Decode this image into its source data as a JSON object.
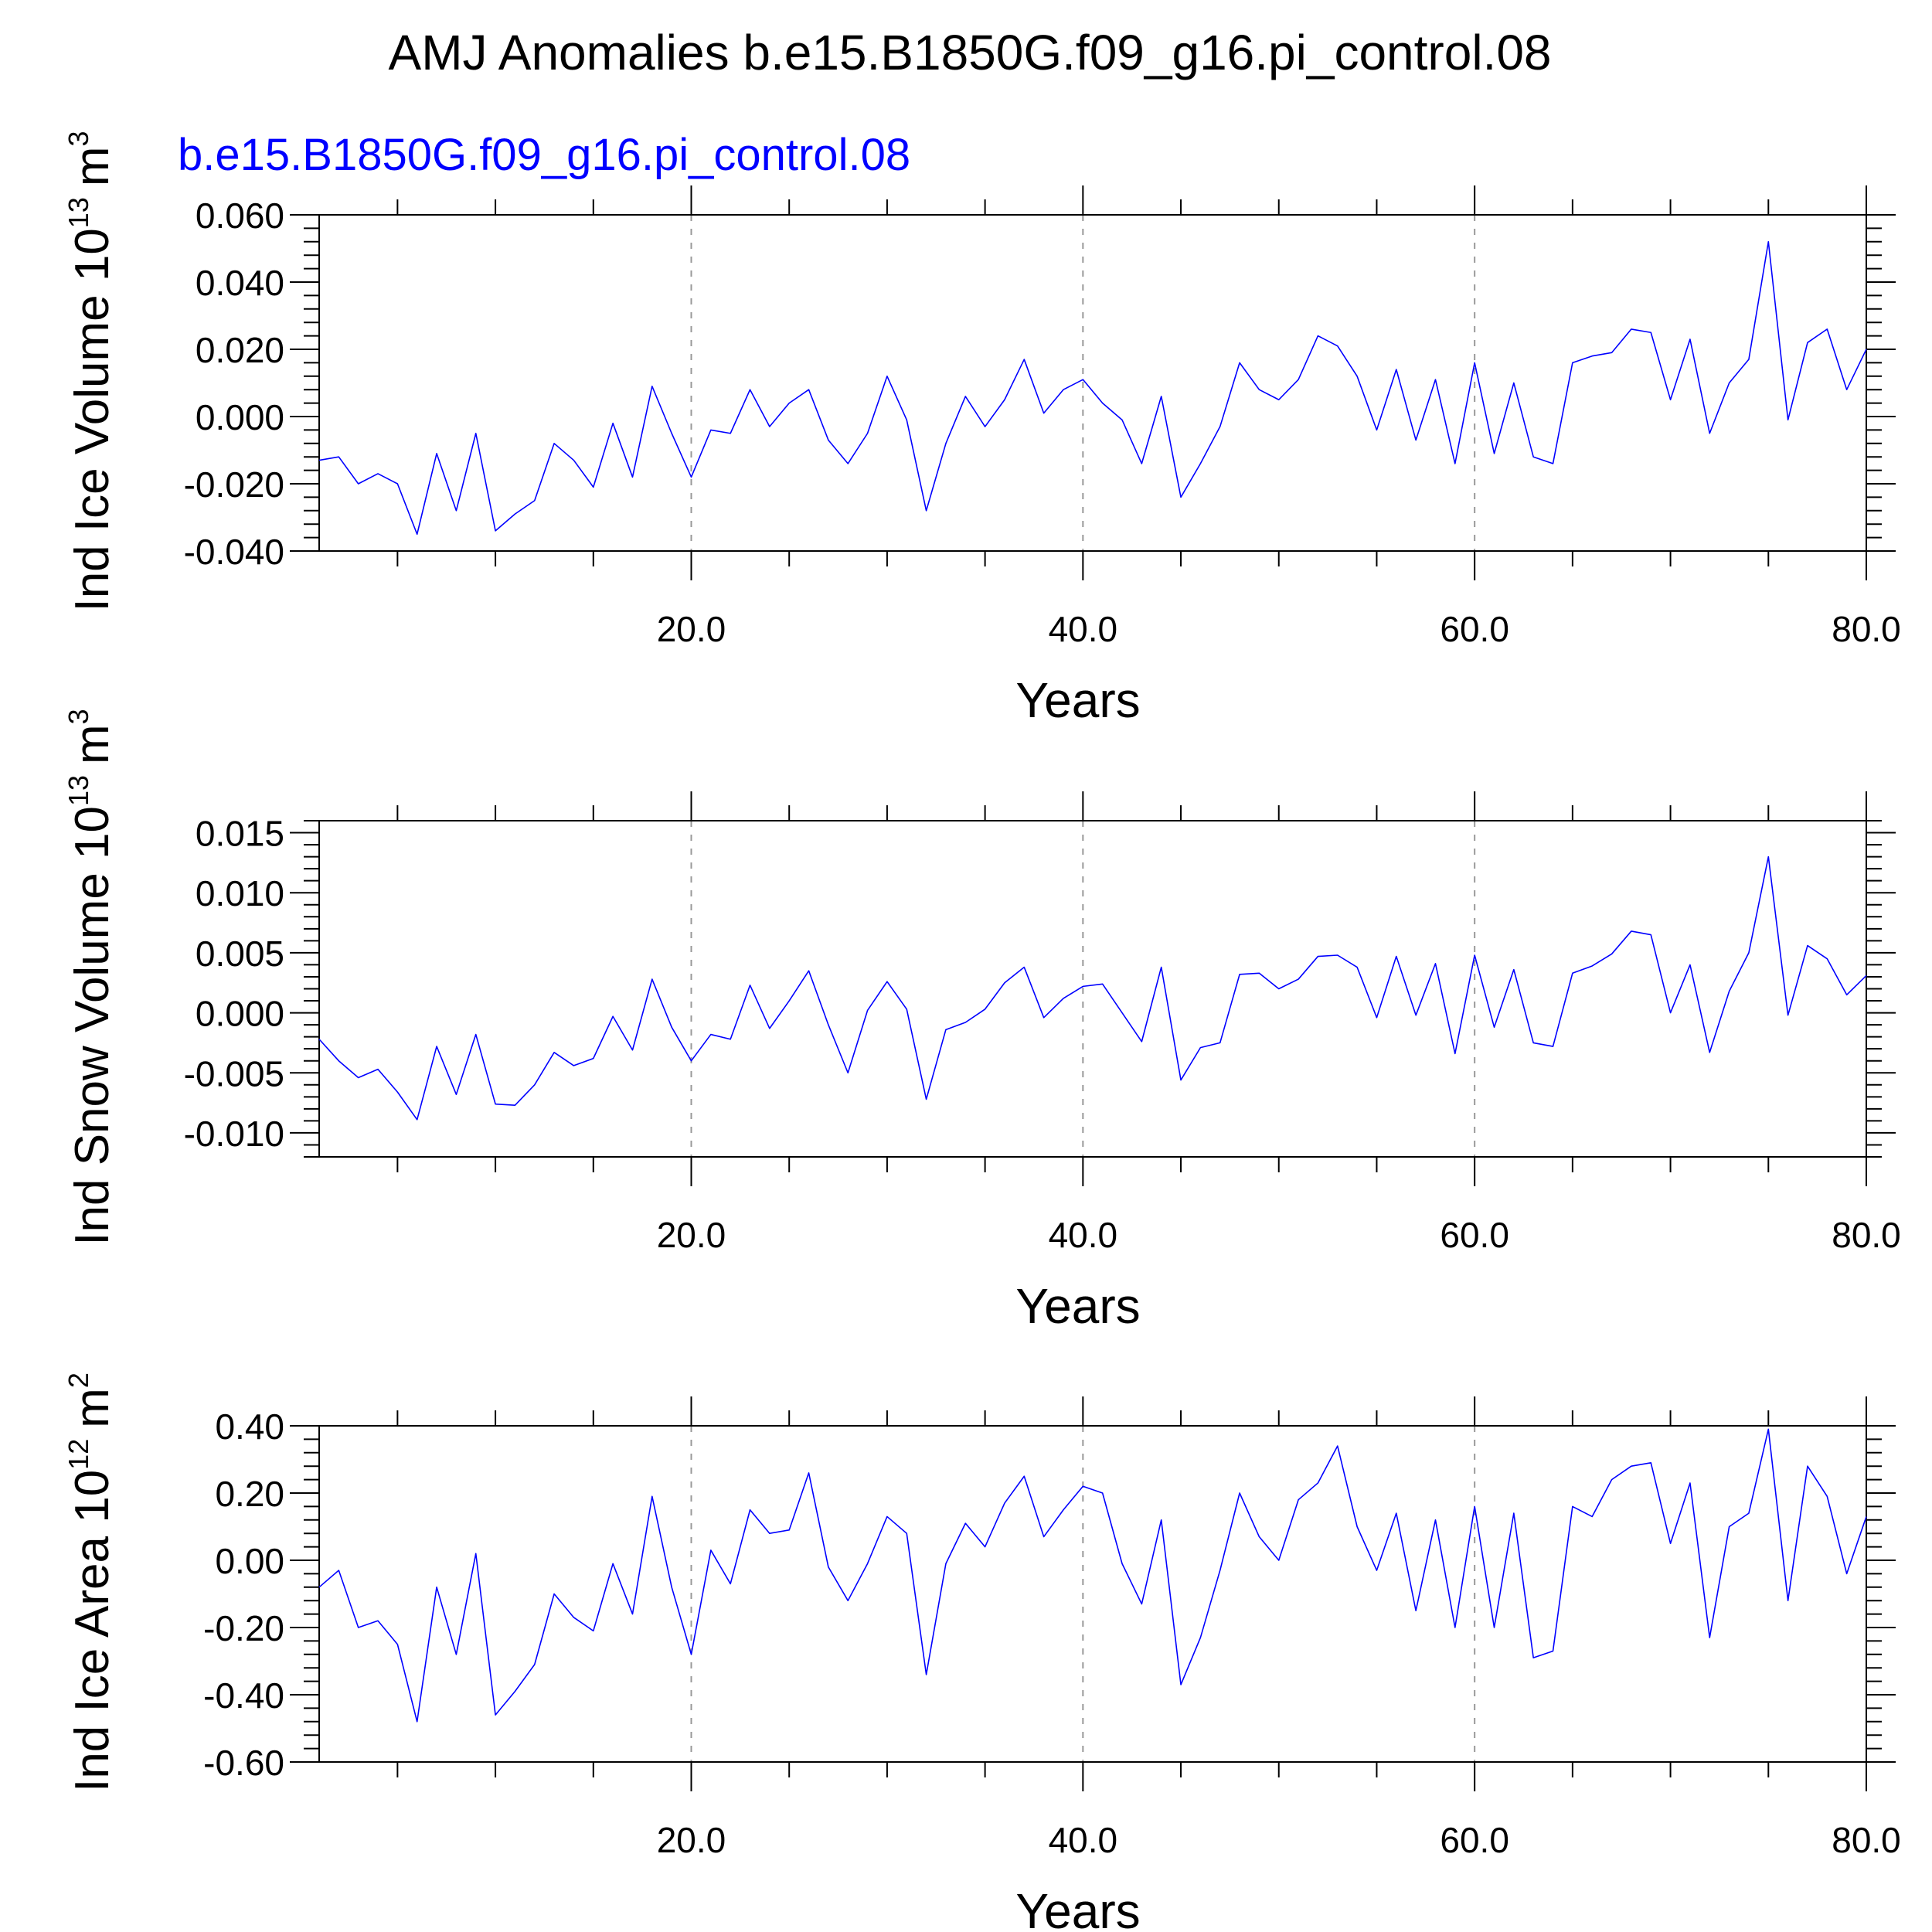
{
  "title": "AMJ Anomalies b.e15.B1850G.f09_g16.pi_control.08",
  "colors": {
    "series": "#0000ff",
    "grid": "#999999",
    "axes": "#000000"
  },
  "chart_data": [
    {
      "type": "line",
      "subtitle": "b.e15.B1850G.f09_g16.pi_control.08",
      "ylabel": {
        "text": "Ind Ice Volume 10",
        "exp": "13",
        "unit": "m",
        "unit_exp": "3"
      },
      "xlabel": "Years",
      "xlim": [
        1,
        80
      ],
      "ylim": [
        -0.04,
        0.06
      ],
      "yticks": [
        -0.04,
        -0.02,
        0.0,
        0.02,
        0.04,
        0.06
      ],
      "yticklabels": [
        "-0.040",
        "-0.020",
        "0.000",
        "0.020",
        "0.040",
        "0.060"
      ],
      "xticks": [
        20,
        40,
        60,
        80
      ],
      "xticklabels": [
        "20.0",
        "40.0",
        "60.0",
        "80.0"
      ],
      "grid_x": [
        20,
        40,
        60
      ],
      "series": [
        {
          "x_start": 1,
          "values": [
            -0.013,
            -0.012,
            -0.02,
            -0.017,
            -0.02,
            -0.035,
            -0.011,
            -0.028,
            -0.005,
            -0.034,
            -0.029,
            -0.025,
            -0.008,
            -0.013,
            -0.021,
            -0.002,
            -0.018,
            0.009,
            -0.005,
            -0.018,
            -0.004,
            -0.005,
            0.008,
            -0.003,
            0.004,
            0.008,
            -0.007,
            -0.014,
            -0.005,
            0.012,
            -0.001,
            -0.028,
            -0.008,
            0.006,
            -0.003,
            0.005,
            0.017,
            0.001,
            0.008,
            0.011,
            0.004,
            -0.001,
            -0.014,
            0.006,
            -0.024,
            -0.014,
            -0.003,
            0.016,
            0.008,
            0.005,
            0.011,
            0.024,
            0.021,
            0.012,
            -0.004,
            0.014,
            -0.007,
            0.011,
            -0.014,
            0.016,
            -0.011,
            0.01,
            -0.012,
            -0.014,
            0.016,
            0.018,
            0.019,
            0.026,
            0.025,
            0.005,
            0.023,
            -0.005,
            0.01,
            0.017,
            0.052,
            -0.001,
            0.022,
            0.026,
            0.008,
            0.02
          ]
        }
      ]
    },
    {
      "type": "line",
      "ylabel": {
        "text": "Ind Snow Volume 10",
        "exp": "13",
        "unit": "m",
        "unit_exp": "3"
      },
      "xlabel": "Years",
      "xlim": [
        1,
        80
      ],
      "ylim": [
        -0.012,
        0.016
      ],
      "yticks": [
        -0.01,
        -0.005,
        0.0,
        0.005,
        0.01,
        0.015
      ],
      "yticklabels": [
        "-0.010",
        "-0.005",
        "0.000",
        "0.005",
        "0.010",
        "0.015"
      ],
      "xticks": [
        20,
        40,
        60,
        80
      ],
      "xticklabels": [
        "20.0",
        "40.0",
        "60.0",
        "80.0"
      ],
      "grid_x": [
        20,
        40,
        60
      ],
      "series": [
        {
          "x_start": 1,
          "values": [
            -0.0022,
            -0.004,
            -0.0054,
            -0.0047,
            -0.0066,
            -0.0089,
            -0.0028,
            -0.0068,
            -0.0018,
            -0.0076,
            -0.0077,
            -0.006,
            -0.0033,
            -0.0044,
            -0.0038,
            -0.0003,
            -0.0031,
            0.0028,
            -0.0012,
            -0.004,
            -0.0018,
            -0.0022,
            0.0023,
            -0.0013,
            0.001,
            0.0035,
            -0.001,
            -0.005,
            0.0002,
            0.0026,
            0.0003,
            -0.0072,
            -0.0014,
            -0.0008,
            0.0003,
            0.0025,
            0.0038,
            -0.0004,
            0.0012,
            0.0022,
            0.0024,
            0.0,
            -0.0024,
            0.0038,
            -0.0056,
            -0.0029,
            -0.0025,
            0.0032,
            0.0033,
            0.002,
            0.0028,
            0.0047,
            0.0048,
            0.0038,
            -0.0004,
            0.0047,
            -0.0002,
            0.0041,
            -0.0034,
            0.0048,
            -0.0012,
            0.0036,
            -0.0025,
            -0.0028,
            0.0033,
            0.0039,
            0.0049,
            0.0068,
            0.0065,
            0.0,
            0.004,
            -0.0033,
            0.0018,
            0.005,
            0.013,
            -0.0002,
            0.0056,
            0.0045,
            0.0015,
            0.0031
          ]
        }
      ]
    },
    {
      "type": "line",
      "ylabel": {
        "text": "Ind Ice Area 10",
        "exp": "12",
        "unit": "m",
        "unit_exp": "2"
      },
      "xlabel": "Years",
      "xlim": [
        1,
        80
      ],
      "ylim": [
        -0.6,
        0.4
      ],
      "yticks": [
        -0.6,
        -0.4,
        -0.2,
        0.0,
        0.2,
        0.4
      ],
      "yticklabels": [
        "-0.60",
        "-0.40",
        "-0.20",
        "0.00",
        "0.20",
        "0.40"
      ],
      "xticks": [
        20,
        40,
        60,
        80
      ],
      "xticklabels": [
        "20.0",
        "40.0",
        "60.0",
        "80.0"
      ],
      "grid_x": [
        20,
        40,
        60
      ],
      "series": [
        {
          "x_start": 1,
          "values": [
            -0.08,
            -0.03,
            -0.2,
            -0.18,
            -0.25,
            -0.48,
            -0.08,
            -0.28,
            0.02,
            -0.46,
            -0.39,
            -0.31,
            -0.1,
            -0.17,
            -0.21,
            -0.01,
            -0.16,
            0.19,
            -0.08,
            -0.28,
            0.03,
            -0.07,
            0.15,
            0.08,
            0.09,
            0.26,
            -0.02,
            -0.12,
            -0.01,
            0.13,
            0.08,
            -0.34,
            -0.01,
            0.11,
            0.04,
            0.17,
            0.25,
            0.07,
            0.15,
            0.22,
            0.2,
            -0.01,
            -0.13,
            0.12,
            -0.37,
            -0.23,
            -0.03,
            0.2,
            0.07,
            0.0,
            0.18,
            0.23,
            0.34,
            0.1,
            -0.03,
            0.14,
            -0.15,
            0.12,
            -0.2,
            0.16,
            -0.2,
            0.14,
            -0.29,
            -0.27,
            0.16,
            0.13,
            0.24,
            0.28,
            0.29,
            0.05,
            0.23,
            -0.23,
            0.1,
            0.14,
            0.39,
            -0.12,
            0.28,
            0.19,
            -0.04,
            0.13
          ]
        }
      ]
    }
  ]
}
